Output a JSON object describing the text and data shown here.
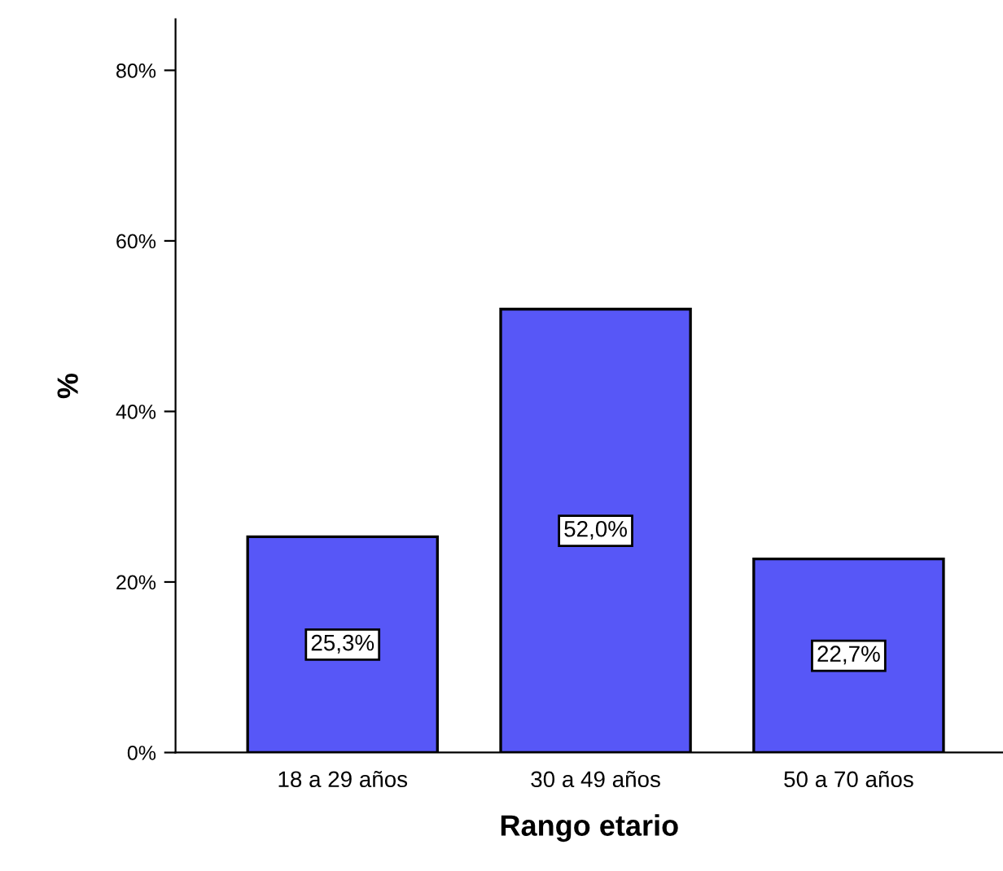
{
  "chart_data": {
    "type": "bar",
    "xlabel": "Rango etario",
    "ylabel": "%",
    "categories": [
      "18 a 29 años",
      "30 a 49 años",
      "50 a 70 años"
    ],
    "values": [
      25.3,
      52.0,
      22.7
    ],
    "value_labels": [
      "25,3%",
      "52,0%",
      "22,7%"
    ],
    "color": "#5757f7",
    "ylim": [
      0,
      86
    ],
    "yticks": [
      {
        "value": 0,
        "label": "0%"
      },
      {
        "value": 20,
        "label": "20%"
      },
      {
        "value": 40,
        "label": "40%"
      },
      {
        "value": 60,
        "label": "60%"
      },
      {
        "value": 80,
        "label": "80%"
      }
    ],
    "grid": false
  }
}
